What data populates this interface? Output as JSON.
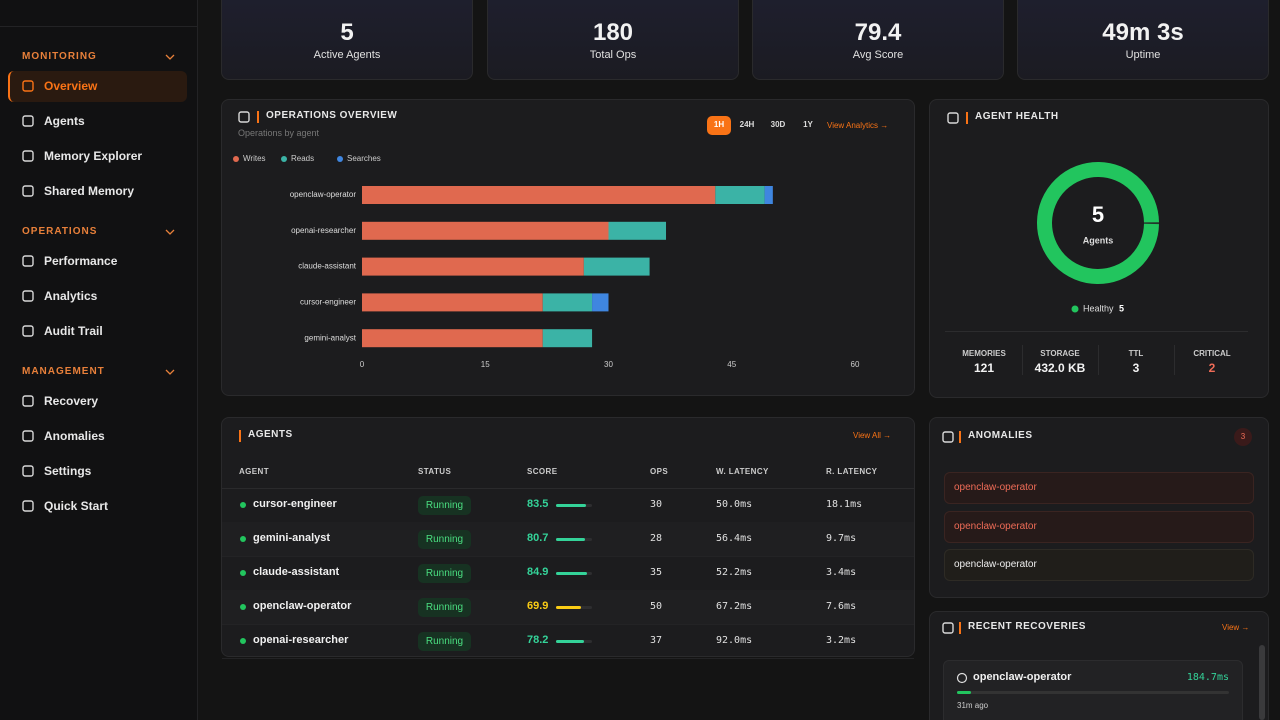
{
  "sidebar": {
    "sections": [
      {
        "title": "MONITORING",
        "items": [
          "Overview",
          "Agents",
          "Memory Explorer",
          "Shared Memory"
        ]
      },
      {
        "title": "OPERATIONS",
        "items": [
          "Performance",
          "Analytics",
          "Audit Trail"
        ]
      },
      {
        "title": "MANAGEMENT",
        "items": [
          "Recovery",
          "Anomalies",
          "Settings",
          "Quick Start"
        ]
      }
    ]
  },
  "stats": [
    {
      "value": 5,
      "label": "Active Agents"
    },
    {
      "value": 180,
      "label": "Total Ops"
    },
    {
      "value": 79.4,
      "label": "Avg Score"
    },
    {
      "value": "49m 3s",
      "label": "Uptime"
    }
  ],
  "operations": {
    "title": "OPERATIONS OVERVIEW",
    "subtitle": "Operations by agent",
    "ranges": [
      "1H",
      "24H",
      "30D",
      "1Y"
    ],
    "link": "View Analytics →",
    "chart": {
      "type": "bar",
      "orientation": "horizontal",
      "stacked": true,
      "categories": [
        "openclaw-operator",
        "openai-researcher",
        "claude-assistant",
        "cursor-engineer",
        "gemini-analyst"
      ],
      "series": [
        {
          "name": "Writes",
          "color": "#e0694f",
          "values": [
            43,
            30,
            27,
            22,
            22
          ]
        },
        {
          "name": "Reads",
          "color": "#3bb3a6",
          "values": [
            6,
            7,
            8,
            6,
            6
          ]
        },
        {
          "name": "Searches",
          "color": "#3f86e0",
          "values": [
            1,
            0,
            0,
            2,
            0
          ]
        }
      ],
      "xlim": [
        0,
        60
      ],
      "xticks": [
        0,
        15,
        30,
        45,
        60
      ]
    }
  },
  "health": {
    "title": "AGENT HEALTH",
    "total": 5,
    "total_label": "Agents",
    "legend": [
      {
        "name": "Healthy",
        "value": 5,
        "color": "#22c55e"
      }
    ],
    "metrics": [
      {
        "label": "MEMORIES",
        "value": 121
      },
      {
        "label": "STORAGE",
        "value": "432.0 KB"
      },
      {
        "label": "TTL",
        "value": 3
      },
      {
        "label": "CRITICAL",
        "value": 2
      }
    ]
  },
  "agents": {
    "title": "AGENTS",
    "link": "View All →",
    "columns": [
      "AGENT",
      "STATUS",
      "SCORE",
      "OPS",
      "W. LATENCY",
      "R. LATENCY"
    ],
    "rows": [
      {
        "agent": "cursor-engineer",
        "status": "Running",
        "score": 83.5,
        "score_color": "#34d399",
        "ops": 30,
        "w_latency": "50.0ms",
        "r_latency": "18.1ms"
      },
      {
        "agent": "gemini-analyst",
        "status": "Running",
        "score": 80.7,
        "score_color": "#34d399",
        "ops": 28,
        "w_latency": "56.4ms",
        "r_latency": "9.7ms"
      },
      {
        "agent": "claude-assistant",
        "status": "Running",
        "score": 84.9,
        "score_color": "#34d399",
        "ops": 35,
        "w_latency": "52.2ms",
        "r_latency": "3.4ms"
      },
      {
        "agent": "openclaw-operator",
        "status": "Running",
        "score": 69.9,
        "score_color": "#facc15",
        "ops": 50,
        "w_latency": "67.2ms",
        "r_latency": "7.6ms"
      },
      {
        "agent": "openai-researcher",
        "status": "Running",
        "score": 78.2,
        "score_color": "#34d399",
        "ops": 37,
        "w_latency": "92.0ms",
        "r_latency": "3.2ms"
      }
    ]
  },
  "anomalies": {
    "title": "ANOMALIES",
    "count": 3,
    "items": [
      "openclaw-operator",
      "openclaw-operator",
      "openclaw-operator"
    ]
  },
  "recoveries": {
    "title": "RECENT RECOVERIES",
    "link": "View →",
    "items": [
      {
        "agent": "openclaw-operator",
        "duration": "184.7ms",
        "time": "31m ago"
      }
    ]
  }
}
